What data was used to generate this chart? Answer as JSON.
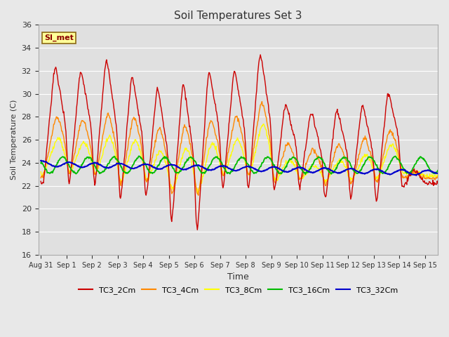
{
  "title": "Soil Temperatures Set 3",
  "xlabel": "Time",
  "ylabel": "Soil Temperature (C)",
  "ylim": [
    16,
    36
  ],
  "yticks": [
    16,
    18,
    20,
    22,
    24,
    26,
    28,
    30,
    32,
    34,
    36
  ],
  "bg_color": "#e0e0e0",
  "grid_color": "#ffffff",
  "fig_bg": "#e8e8e8",
  "annotation_text": "SI_met",
  "annotation_color": "#8b0000",
  "annotation_bg": "#ffff99",
  "annotation_border": "#8b6914",
  "series_colors": [
    "#cc0000",
    "#ff8800",
    "#ffff00",
    "#00bb00",
    "#0000cc"
  ],
  "series_lw": [
    1.0,
    1.0,
    1.0,
    1.3,
    1.5
  ],
  "n_days": 15.5,
  "n_points": 744,
  "xtick_positions": [
    0,
    1,
    2,
    3,
    4,
    5,
    6,
    7,
    8,
    9,
    10,
    11,
    12,
    13,
    14,
    15
  ],
  "xtick_labels": [
    "Aug 31",
    "Sep 1",
    "Sep 2",
    "Sep 3",
    "Sep 4",
    "Sep 5",
    "Sep 6",
    "Sep 7",
    "Sep 8",
    "Sep 9",
    "Sep 10",
    "Sep 11",
    "Sep 12",
    "Sep 13",
    "Sep 14",
    "Sep 15"
  ],
  "legend_labels": [
    "TC3_2Cm",
    "TC3_4Cm",
    "TC3_8Cm",
    "TC3_16Cm",
    "TC3_32Cm"
  ]
}
